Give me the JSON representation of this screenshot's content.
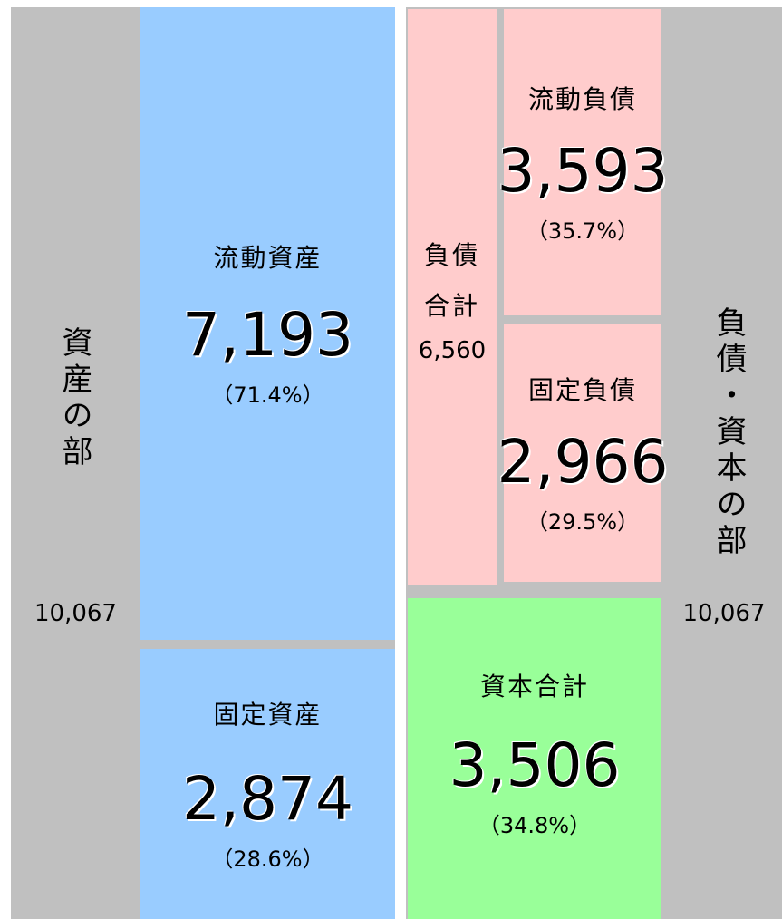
{
  "assets": {
    "title": "資産の部",
    "total": "10,067",
    "current": {
      "label": "流動資産",
      "amount": "7,193",
      "ratio": "（71.4%）"
    },
    "fixed": {
      "label": "固定資産",
      "amount": "2,874",
      "ratio": "（28.6%）"
    }
  },
  "liabilities_equity": {
    "title": "負債・資本の部",
    "total": "10,067",
    "liabilities": {
      "label": "負債合計",
      "amount": "6,560"
    },
    "current": {
      "label": "流動負債",
      "amount": "3,593",
      "ratio": "（35.7%）"
    },
    "fixed": {
      "label": "固定負債",
      "amount": "2,966",
      "ratio": "（29.5%）"
    },
    "equity": {
      "label": "資本合計",
      "amount": "3,506",
      "ratio": "（34.8%）"
    }
  }
}
